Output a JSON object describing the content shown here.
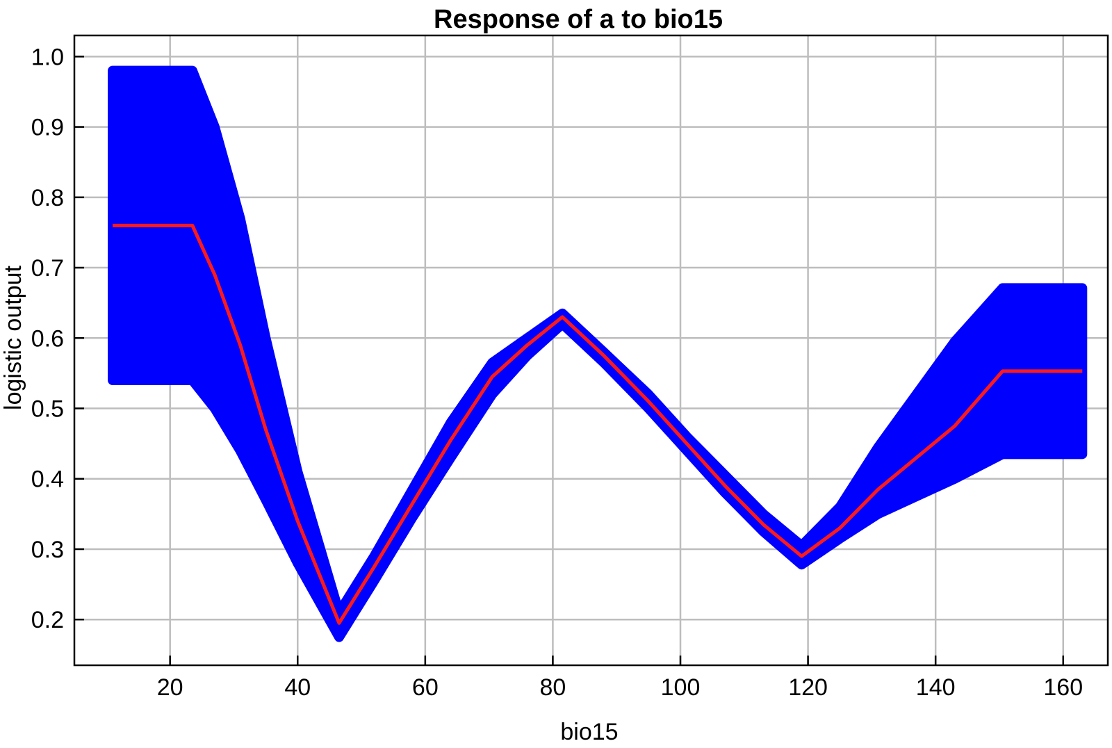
{
  "chart_data": {
    "type": "area",
    "title": "Response of a to bio15",
    "xlabel": "bio15",
    "ylabel": "logistic output",
    "xlim": [
      5,
      167
    ],
    "ylim": [
      0.135,
      1.03
    ],
    "xticks": [
      20,
      40,
      60,
      80,
      100,
      120,
      140,
      160
    ],
    "yticks": [
      0.2,
      0.3,
      0.4,
      0.5,
      0.6,
      0.7,
      0.8,
      0.9,
      1.0
    ],
    "ytick_labels": [
      "0.2",
      "0.3",
      "0.4",
      "0.5",
      "0.6",
      "0.7",
      "0.8",
      "0.9",
      "1.0"
    ],
    "grid": true,
    "colors": {
      "band": "#0000ff",
      "mean": "#ff1a1a",
      "grid": "#bdbdbd"
    },
    "series": [
      {
        "role": "mean",
        "x": [
          11,
          23.5,
          27,
          31,
          35,
          40,
          46.5,
          52,
          58,
          64,
          70.5,
          76,
          81.5,
          88,
          95,
          101,
          107,
          113,
          119,
          125,
          131,
          137,
          143,
          150.5,
          163
        ],
        "y": [
          0.76,
          0.76,
          0.69,
          0.59,
          0.47,
          0.34,
          0.195,
          0.275,
          0.365,
          0.455,
          0.545,
          0.59,
          0.63,
          0.575,
          0.51,
          0.45,
          0.39,
          0.335,
          0.29,
          0.33,
          0.385,
          0.43,
          0.475,
          0.553,
          0.553
        ]
      },
      {
        "role": "upper",
        "x": [
          11,
          23.5,
          27,
          31,
          35,
          40,
          46.5,
          52,
          58,
          64,
          70.5,
          76,
          81.5,
          88,
          95,
          101,
          107,
          113,
          119,
          125,
          131,
          137,
          143,
          150.5,
          163
        ],
        "y": [
          0.98,
          0.98,
          0.9,
          0.77,
          0.6,
          0.41,
          0.21,
          0.29,
          0.385,
          0.48,
          0.565,
          0.6,
          0.635,
          0.58,
          0.52,
          0.46,
          0.405,
          0.35,
          0.305,
          0.36,
          0.445,
          0.52,
          0.595,
          0.671,
          0.671
        ]
      },
      {
        "role": "lower",
        "x": [
          11,
          23.5,
          27,
          31,
          35,
          40,
          46.5,
          52,
          58,
          64,
          70.5,
          76,
          81.5,
          88,
          95,
          101,
          107,
          113,
          119,
          125,
          131,
          137,
          143,
          150.5,
          163
        ],
        "y": [
          0.54,
          0.54,
          0.5,
          0.44,
          0.37,
          0.28,
          0.175,
          0.255,
          0.345,
          0.43,
          0.52,
          0.575,
          0.62,
          0.565,
          0.5,
          0.44,
          0.38,
          0.325,
          0.278,
          0.315,
          0.35,
          0.375,
          0.4,
          0.435,
          0.435
        ]
      }
    ]
  }
}
